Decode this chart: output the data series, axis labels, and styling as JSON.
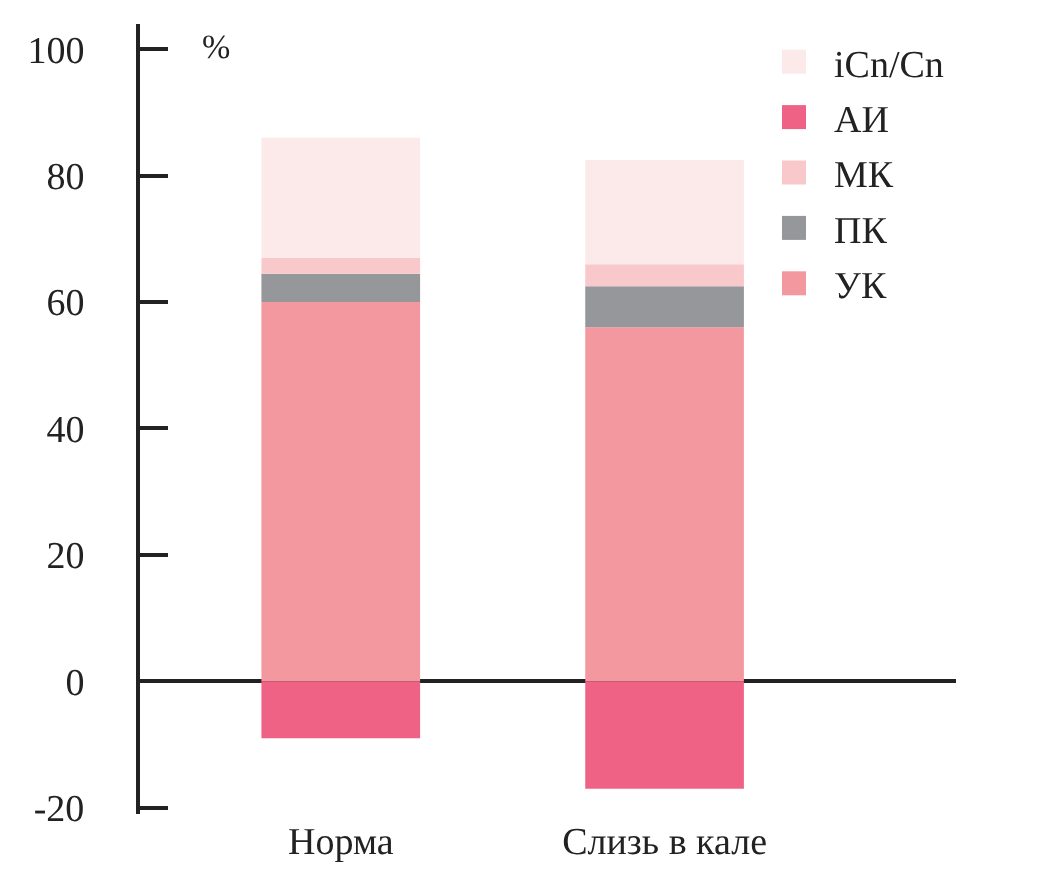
{
  "chart_data": {
    "type": "bar",
    "stacked": true,
    "ylabel": "%",
    "categories": [
      "Норма",
      "Слизь в кале"
    ],
    "series": [
      {
        "name": "УК",
        "color": "#f4989f",
        "values": [
          60,
          56
        ]
      },
      {
        "name": "ПК",
        "color": "#96979b",
        "values": [
          4.5,
          6.5
        ]
      },
      {
        "name": "МК",
        "color": "#f9c8cb",
        "values": [
          2.5,
          3.5
        ]
      },
      {
        "name": "АИ",
        "color": "#f06285",
        "values": [
          -9,
          -17
        ]
      },
      {
        "name": "iCn/Cn",
        "color": "#fceaeb",
        "values": [
          19,
          16.5
        ]
      }
    ],
    "ylim": [
      -21,
      104
    ],
    "yticks": [
      -20,
      0,
      20,
      40,
      60,
      80,
      100
    ],
    "legend": "top right"
  }
}
